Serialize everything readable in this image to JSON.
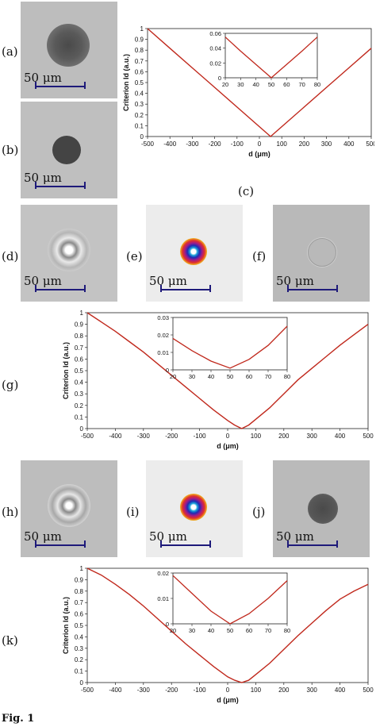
{
  "panels": {
    "a": "(a)",
    "b": "(b)",
    "c": "(c)",
    "d": "(d)",
    "e": "(e)",
    "f": "(f)",
    "g": "(g)",
    "h": "(h)",
    "i": "(i)",
    "j": "(j)",
    "k": "(k)"
  },
  "scale_label": "50 μm",
  "caption": "Fig. 1",
  "colors": {
    "curve": "#c0281c",
    "scalebar": "#1e1a7a"
  },
  "chart_data": [
    {
      "id": "c",
      "type": "line",
      "xlabel": "d (μm)",
      "ylabel": "Criterion Id (a.u.)",
      "xlim": [
        -500,
        500
      ],
      "ylim": [
        0,
        1
      ],
      "xticks": [
        "-500",
        "-400",
        "-300",
        "-200",
        "-100",
        "0",
        "100",
        "200",
        "300",
        "400",
        "500"
      ],
      "yticks": [
        "0",
        "0.1",
        "0.2",
        "0.3",
        "0.4",
        "0.5",
        "0.6",
        "0.7",
        "0.8",
        "0.9",
        "1"
      ],
      "series": [
        {
          "x": [
            -500,
            -400,
            -300,
            -200,
            -100,
            0,
            50,
            100,
            200,
            300,
            400,
            500
          ],
          "values": [
            1.0,
            0.818,
            0.636,
            0.455,
            0.273,
            0.091,
            0.0,
            0.091,
            0.273,
            0.455,
            0.636,
            0.818
          ]
        }
      ],
      "inset": {
        "xlim": [
          20,
          80
        ],
        "ylim": [
          0,
          0.06
        ],
        "xticks": [
          "20",
          "30",
          "40",
          "50",
          "60",
          "70",
          "80"
        ],
        "yticks": [
          "0",
          "0.02",
          "0.04",
          "0.06"
        ],
        "x": [
          20,
          30,
          40,
          50,
          60,
          70,
          80
        ],
        "values": [
          0.055,
          0.036,
          0.018,
          0.0,
          0.018,
          0.036,
          0.055
        ]
      }
    },
    {
      "id": "g",
      "type": "line",
      "xlabel": "d (μm)",
      "ylabel": "Criterion Id (a.u.)",
      "xlim": [
        -500,
        500
      ],
      "ylim": [
        0,
        1
      ],
      "xticks": [
        "-500",
        "-400",
        "-300",
        "-200",
        "-100",
        "0",
        "100",
        "200",
        "300",
        "400",
        "500"
      ],
      "yticks": [
        "0",
        "0.1",
        "0.2",
        "0.3",
        "0.4",
        "0.5",
        "0.6",
        "0.7",
        "0.8",
        "0.9",
        "1"
      ],
      "series": [
        {
          "x": [
            -500,
            -450,
            -400,
            -350,
            -300,
            -250,
            -200,
            -150,
            -100,
            -50,
            0,
            25,
            50,
            75,
            100,
            150,
            200,
            250,
            300,
            350,
            400,
            450,
            500
          ],
          "values": [
            1.0,
            0.92,
            0.84,
            0.75,
            0.66,
            0.56,
            0.46,
            0.36,
            0.26,
            0.16,
            0.07,
            0.03,
            0.0,
            0.03,
            0.08,
            0.18,
            0.3,
            0.42,
            0.52,
            0.62,
            0.72,
            0.81,
            0.9
          ]
        }
      ],
      "inset": {
        "xlim": [
          20,
          80
        ],
        "ylim": [
          0,
          0.03
        ],
        "xticks": [
          "20",
          "30",
          "40",
          "50",
          "60",
          "70",
          "80"
        ],
        "yticks": [
          "0",
          "0.01",
          "0.02",
          "0.03"
        ],
        "x": [
          20,
          30,
          40,
          50,
          60,
          70,
          80
        ],
        "values": [
          0.018,
          0.011,
          0.005,
          0.001,
          0.006,
          0.014,
          0.025
        ]
      }
    },
    {
      "id": "k",
      "type": "line",
      "xlabel": "d (μm)",
      "ylabel": "Criterion Id (a.u.)",
      "xlim": [
        -500,
        500
      ],
      "ylim": [
        0,
        1
      ],
      "xticks": [
        "-500",
        "-400",
        "-300",
        "-200",
        "-100",
        "0",
        "100",
        "200",
        "300",
        "400",
        "500"
      ],
      "yticks": [
        "0",
        "0.1",
        "0.2",
        "0.3",
        "0.4",
        "0.5",
        "0.6",
        "0.7",
        "0.8",
        "0.9",
        "1"
      ],
      "series": [
        {
          "x": [
            -500,
            -450,
            -400,
            -350,
            -300,
            -250,
            -200,
            -150,
            -100,
            -50,
            0,
            25,
            50,
            75,
            100,
            150,
            200,
            250,
            300,
            350,
            400,
            450,
            500
          ],
          "values": [
            1.0,
            0.94,
            0.86,
            0.77,
            0.67,
            0.56,
            0.45,
            0.34,
            0.24,
            0.14,
            0.05,
            0.02,
            0.0,
            0.02,
            0.07,
            0.17,
            0.29,
            0.41,
            0.52,
            0.63,
            0.73,
            0.8,
            0.86
          ]
        }
      ],
      "inset": {
        "xlim": [
          20,
          80
        ],
        "ylim": [
          0,
          0.02
        ],
        "xticks": [
          "20",
          "30",
          "40",
          "50",
          "60",
          "70",
          "80"
        ],
        "yticks": [
          "0",
          "0.01",
          "0.02"
        ],
        "x": [
          20,
          30,
          40,
          50,
          60,
          70,
          80
        ],
        "values": [
          0.019,
          0.012,
          0.005,
          0.0,
          0.004,
          0.01,
          0.017
        ]
      }
    }
  ]
}
